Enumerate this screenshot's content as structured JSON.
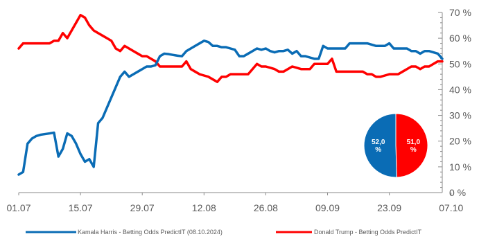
{
  "chart_data": {
    "type": "line",
    "x_labels": [
      "01.07",
      "15.07",
      "29.07",
      "12.08",
      "26.08",
      "09.09",
      "23.09",
      "07.10"
    ],
    "y_ticks": [
      "0 %",
      "10 %",
      "20 %",
      "30 %",
      "40 %",
      "50 %",
      "60 %",
      "70 %"
    ],
    "ylim": [
      0,
      70
    ],
    "grid": false,
    "legend_position": "bottom",
    "series": [
      {
        "name": "Kamala Harris - Betting Odds PredictIT (08.10.2024)",
        "color": "#0a6cb5",
        "points": [
          [
            0,
            7
          ],
          [
            1,
            8
          ],
          [
            2,
            19
          ],
          [
            3,
            21
          ],
          [
            4,
            22
          ],
          [
            5,
            22.5
          ],
          [
            7,
            23
          ],
          [
            8,
            23.3
          ],
          [
            9,
            14
          ],
          [
            10,
            17
          ],
          [
            11,
            23
          ],
          [
            12,
            22
          ],
          [
            13,
            19
          ],
          [
            14,
            15
          ],
          [
            15,
            12
          ],
          [
            16,
            13
          ],
          [
            17,
            10
          ],
          [
            18,
            27
          ],
          [
            19,
            29
          ],
          [
            20,
            33
          ],
          [
            21,
            37
          ],
          [
            22,
            41
          ],
          [
            23,
            45
          ],
          [
            24,
            47
          ],
          [
            25,
            45
          ],
          [
            26,
            46
          ],
          [
            27,
            47
          ],
          [
            28,
            48
          ],
          [
            29,
            49
          ],
          [
            30,
            49
          ],
          [
            31,
            49.5
          ],
          [
            32,
            53
          ],
          [
            33,
            54
          ],
          [
            34,
            53.8
          ],
          [
            35,
            53.5
          ],
          [
            36,
            53.2
          ],
          [
            37,
            53
          ],
          [
            38,
            55
          ],
          [
            39,
            56
          ],
          [
            40,
            57
          ],
          [
            41,
            58
          ],
          [
            42,
            59
          ],
          [
            43,
            58.5
          ],
          [
            44,
            57
          ],
          [
            45,
            57
          ],
          [
            46,
            56.5
          ],
          [
            47,
            56.5
          ],
          [
            48,
            56
          ],
          [
            49,
            55.5
          ],
          [
            50,
            53
          ],
          [
            51,
            53
          ],
          [
            52,
            54
          ],
          [
            53,
            55
          ],
          [
            54,
            56
          ],
          [
            55,
            55.5
          ],
          [
            56,
            56
          ],
          [
            57,
            55
          ],
          [
            58,
            54.5
          ],
          [
            59,
            55
          ],
          [
            60,
            55
          ],
          [
            61,
            55.5
          ],
          [
            62,
            54
          ],
          [
            63,
            55
          ],
          [
            64,
            53
          ],
          [
            65,
            53
          ],
          [
            66,
            52.5
          ],
          [
            67,
            52
          ],
          [
            68,
            52
          ],
          [
            69,
            57
          ],
          [
            70,
            56
          ],
          [
            71,
            56
          ],
          [
            72,
            56
          ],
          [
            73,
            56
          ],
          [
            74,
            56
          ],
          [
            75,
            58
          ],
          [
            76,
            58
          ],
          [
            77,
            58
          ],
          [
            78,
            58
          ],
          [
            79,
            58
          ],
          [
            80,
            57.5
          ],
          [
            81,
            57
          ],
          [
            82,
            57
          ],
          [
            83,
            57
          ],
          [
            84,
            58
          ],
          [
            85,
            56
          ],
          [
            86,
            56
          ],
          [
            87,
            56
          ],
          [
            88,
            56
          ],
          [
            89,
            55
          ],
          [
            90,
            55
          ],
          [
            91,
            54
          ],
          [
            92,
            55
          ],
          [
            93,
            55
          ],
          [
            94,
            54.5
          ],
          [
            95,
            54
          ],
          [
            96,
            52
          ]
        ]
      },
      {
        "name": "Donald Trump - Betting Odds PredictIT",
        "color": "#ff0000",
        "points": [
          [
            0,
            56
          ],
          [
            1,
            58
          ],
          [
            2,
            58
          ],
          [
            3,
            58
          ],
          [
            4,
            58
          ],
          [
            5,
            58
          ],
          [
            6,
            58
          ],
          [
            7,
            58
          ],
          [
            8,
            59
          ],
          [
            9,
            59
          ],
          [
            10,
            62
          ],
          [
            11,
            60
          ],
          [
            12,
            63
          ],
          [
            13,
            66
          ],
          [
            14,
            69
          ],
          [
            15,
            68
          ],
          [
            16,
            65
          ],
          [
            17,
            63
          ],
          [
            18,
            62
          ],
          [
            19,
            61
          ],
          [
            20,
            60
          ],
          [
            21,
            59
          ],
          [
            22,
            56
          ],
          [
            23,
            55
          ],
          [
            24,
            57
          ],
          [
            25,
            56
          ],
          [
            26,
            55
          ],
          [
            27,
            54
          ],
          [
            28,
            53
          ],
          [
            29,
            53
          ],
          [
            30,
            52
          ],
          [
            31,
            51
          ],
          [
            32,
            49
          ],
          [
            33,
            49
          ],
          [
            34,
            49
          ],
          [
            35,
            49
          ],
          [
            36,
            49
          ],
          [
            37,
            49
          ],
          [
            38,
            51
          ],
          [
            39,
            48
          ],
          [
            40,
            47
          ],
          [
            41,
            46
          ],
          [
            42,
            45.5
          ],
          [
            43,
            45
          ],
          [
            44,
            44
          ],
          [
            45,
            43
          ],
          [
            46,
            45
          ],
          [
            47,
            45
          ],
          [
            48,
            46
          ],
          [
            49,
            46
          ],
          [
            50,
            46
          ],
          [
            51,
            46
          ],
          [
            52,
            46
          ],
          [
            53,
            48
          ],
          [
            54,
            50
          ],
          [
            55,
            49
          ],
          [
            56,
            49
          ],
          [
            57,
            48.5
          ],
          [
            58,
            48
          ],
          [
            59,
            47
          ],
          [
            60,
            47
          ],
          [
            61,
            48
          ],
          [
            62,
            49
          ],
          [
            63,
            48.5
          ],
          [
            64,
            48
          ],
          [
            65,
            48
          ],
          [
            66,
            48
          ],
          [
            67,
            50
          ],
          [
            68,
            50
          ],
          [
            69,
            50
          ],
          [
            70,
            50
          ],
          [
            71,
            52
          ],
          [
            72,
            47
          ],
          [
            73,
            47
          ],
          [
            74,
            47
          ],
          [
            75,
            47
          ],
          [
            76,
            47
          ],
          [
            77,
            47
          ],
          [
            78,
            47
          ],
          [
            79,
            46
          ],
          [
            80,
            46
          ],
          [
            81,
            45
          ],
          [
            82,
            45
          ],
          [
            83,
            45.5
          ],
          [
            84,
            46
          ],
          [
            85,
            46
          ],
          [
            86,
            46
          ],
          [
            87,
            47
          ],
          [
            88,
            48
          ],
          [
            89,
            49
          ],
          [
            90,
            49
          ],
          [
            91,
            48
          ],
          [
            92,
            49
          ],
          [
            93,
            49
          ],
          [
            94,
            50
          ],
          [
            95,
            51
          ],
          [
            96,
            51
          ]
        ]
      }
    ],
    "pie": {
      "type": "pie",
      "slices": [
        {
          "value": 52.0,
          "label": "52,0\n%",
          "color": "#0a6cb5"
        },
        {
          "value": 51.0,
          "label": "51,0\n%",
          "color": "#ff0000"
        }
      ]
    }
  }
}
